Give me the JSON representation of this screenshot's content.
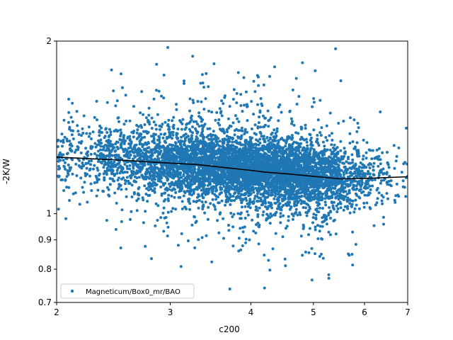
{
  "chart_data": {
    "type": "scatter",
    "xlabel": "c200",
    "ylabel": "-2K/W",
    "xscale": "log",
    "yscale": "log",
    "xlim": [
      2,
      7
    ],
    "ylim": [
      0.7,
      2
    ],
    "xticks": [
      2,
      3,
      4,
      5,
      6,
      7
    ],
    "yticks": [
      0.7,
      0.8,
      0.9,
      1,
      2
    ],
    "grid": false,
    "legend": {
      "entries": [
        "Magneticum/Box0_mr/BAO"
      ],
      "placement": "lower-left"
    },
    "colors": {
      "points": "#1f77b4",
      "trend": "#000000"
    },
    "series": [
      {
        "name": "Magneticum/Box0_mr/BAO",
        "kind": "scatter",
        "density": [
          {
            "c": 2.1,
            "y": 1.24,
            "n": 160
          },
          {
            "c": 2.4,
            "y": 1.23,
            "n": 260
          },
          {
            "c": 2.7,
            "y": 1.22,
            "n": 380
          },
          {
            "c": 3.0,
            "y": 1.21,
            "n": 520
          },
          {
            "c": 3.3,
            "y": 1.2,
            "n": 640
          },
          {
            "c": 3.6,
            "y": 1.19,
            "n": 720
          },
          {
            "c": 3.9,
            "y": 1.18,
            "n": 760
          },
          {
            "c": 4.2,
            "y": 1.17,
            "n": 720
          },
          {
            "c": 4.5,
            "y": 1.16,
            "n": 640
          },
          {
            "c": 4.8,
            "y": 1.15,
            "n": 520
          },
          {
            "c": 5.1,
            "y": 1.14,
            "n": 400
          },
          {
            "c": 5.4,
            "y": 1.135,
            "n": 300
          },
          {
            "c": 5.8,
            "y": 1.14,
            "n": 180
          },
          {
            "c": 6.3,
            "y": 1.15,
            "n": 80
          },
          {
            "c": 6.8,
            "y": 1.16,
            "n": 30
          }
        ]
      },
      {
        "name": "",
        "kind": "line",
        "x": [
          2.0,
          2.5,
          3.0,
          3.3,
          3.6,
          4.0,
          4.2,
          4.6,
          5.0,
          5.5,
          6.0,
          6.5,
          7.0
        ],
        "y": [
          1.255,
          1.24,
          1.225,
          1.218,
          1.205,
          1.19,
          1.182,
          1.172,
          1.162,
          1.15,
          1.152,
          1.156,
          1.16
        ]
      }
    ]
  }
}
